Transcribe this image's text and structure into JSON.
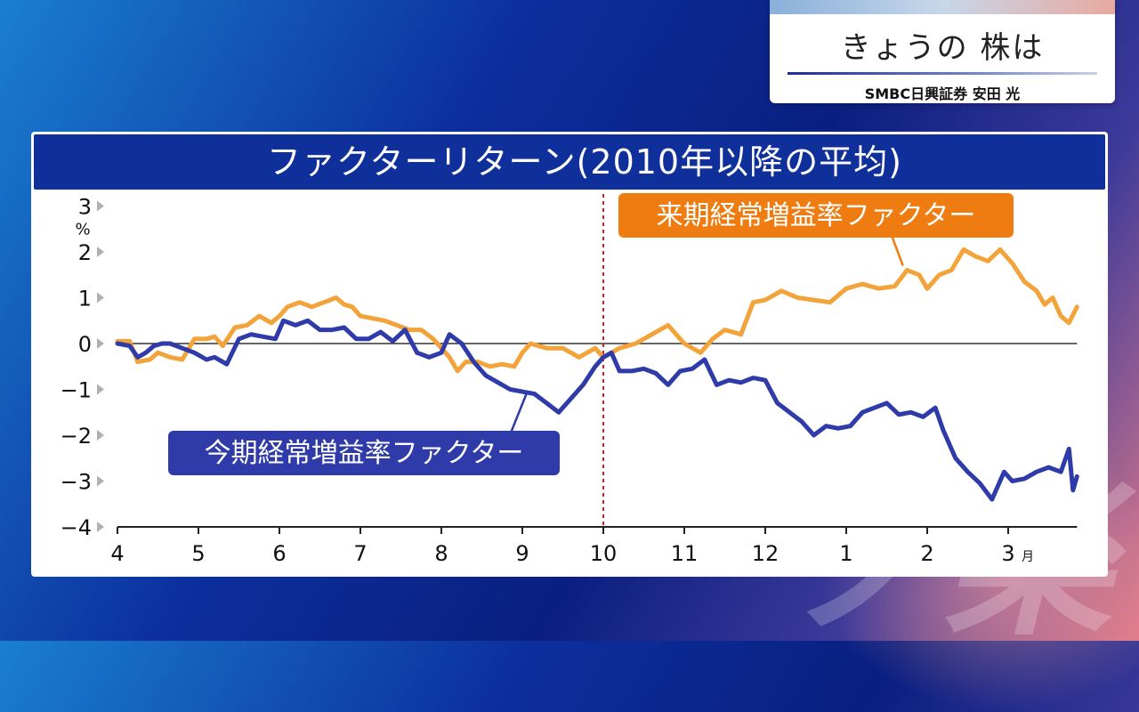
{
  "caption": {
    "title": "きょうの 株は",
    "subtitle": "SMBC日興証券 安田 光"
  },
  "watermark": "ソ楽",
  "chart_data": {
    "type": "line",
    "title": "ファクターリターン(2010年以降の平均)",
    "ylabel": "%",
    "ylim": [
      -4,
      3
    ],
    "yticks": [
      "3",
      "2",
      "1",
      "0",
      "−1",
      "−2",
      "−3",
      "−4"
    ],
    "yticks_values": [
      3,
      2,
      1,
      0,
      -1,
      -2,
      -3,
      -4
    ],
    "x_ticks": [
      "4",
      "5",
      "6",
      "7",
      "8",
      "9",
      "10",
      "11",
      "12",
      "1",
      "2",
      "3"
    ],
    "x_unit": "月",
    "xlim": [
      4,
      15.85
    ],
    "divider_x": 10,
    "grid": false,
    "series": [
      {
        "name": "来期経常増益率ファクター",
        "color": "#f2a33a",
        "label_bg": "#ee7c10",
        "points": [
          [
            4.0,
            0.05
          ],
          [
            4.15,
            0.05
          ],
          [
            4.25,
            -0.4
          ],
          [
            4.4,
            -0.35
          ],
          [
            4.5,
            -0.2
          ],
          [
            4.65,
            -0.3
          ],
          [
            4.8,
            -0.35
          ],
          [
            4.95,
            0.1
          ],
          [
            5.1,
            0.1
          ],
          [
            5.2,
            0.15
          ],
          [
            5.3,
            -0.05
          ],
          [
            5.45,
            0.35
          ],
          [
            5.6,
            0.4
          ],
          [
            5.75,
            0.6
          ],
          [
            5.9,
            0.45
          ],
          [
            6.0,
            0.6
          ],
          [
            6.1,
            0.8
          ],
          [
            6.25,
            0.9
          ],
          [
            6.4,
            0.8
          ],
          [
            6.55,
            0.9
          ],
          [
            6.7,
            1.0
          ],
          [
            6.8,
            0.85
          ],
          [
            6.9,
            0.8
          ],
          [
            7.0,
            0.6
          ],
          [
            7.15,
            0.55
          ],
          [
            7.3,
            0.5
          ],
          [
            7.45,
            0.4
          ],
          [
            7.6,
            0.3
          ],
          [
            7.75,
            0.3
          ],
          [
            7.9,
            0.1
          ],
          [
            8.0,
            -0.1
          ],
          [
            8.1,
            -0.3
          ],
          [
            8.2,
            -0.6
          ],
          [
            8.3,
            -0.4
          ],
          [
            8.45,
            -0.4
          ],
          [
            8.6,
            -0.5
          ],
          [
            8.75,
            -0.45
          ],
          [
            8.9,
            -0.5
          ],
          [
            9.0,
            -0.2
          ],
          [
            9.1,
            0.0
          ],
          [
            9.3,
            -0.1
          ],
          [
            9.5,
            -0.1
          ],
          [
            9.7,
            -0.3
          ],
          [
            9.9,
            -0.1
          ],
          [
            10.0,
            -0.3
          ],
          [
            10.2,
            -0.1
          ],
          [
            10.4,
            0.0
          ],
          [
            10.6,
            0.2
          ],
          [
            10.8,
            0.4
          ],
          [
            11.0,
            0.0
          ],
          [
            11.2,
            -0.2
          ],
          [
            11.35,
            0.1
          ],
          [
            11.5,
            0.3
          ],
          [
            11.7,
            0.2
          ],
          [
            11.85,
            0.9
          ],
          [
            12.0,
            0.95
          ],
          [
            12.2,
            1.15
          ],
          [
            12.4,
            1.0
          ],
          [
            12.6,
            0.95
          ],
          [
            12.8,
            0.9
          ],
          [
            13.0,
            1.2
          ],
          [
            13.2,
            1.3
          ],
          [
            13.4,
            1.2
          ],
          [
            13.6,
            1.25
          ],
          [
            13.75,
            1.6
          ],
          [
            13.9,
            1.5
          ],
          [
            14.0,
            1.2
          ],
          [
            14.15,
            1.5
          ],
          [
            14.3,
            1.6
          ],
          [
            14.45,
            2.05
          ],
          [
            14.6,
            1.9
          ],
          [
            14.75,
            1.8
          ],
          [
            14.9,
            2.05
          ],
          [
            15.05,
            1.75
          ],
          [
            15.2,
            1.35
          ],
          [
            15.35,
            1.15
          ],
          [
            15.45,
            0.85
          ],
          [
            15.55,
            1.0
          ],
          [
            15.65,
            0.6
          ],
          [
            15.75,
            0.45
          ],
          [
            15.85,
            0.8
          ]
        ]
      },
      {
        "name": "今期経常増益率ファクター",
        "color": "#2f3ba8",
        "label_bg": "#2f3ba8",
        "points": [
          [
            4.0,
            0.0
          ],
          [
            4.15,
            -0.05
          ],
          [
            4.25,
            -0.3
          ],
          [
            4.35,
            -0.2
          ],
          [
            4.45,
            -0.05
          ],
          [
            4.55,
            0.0
          ],
          [
            4.65,
            0.0
          ],
          [
            4.8,
            -0.1
          ],
          [
            4.95,
            -0.2
          ],
          [
            5.1,
            -0.35
          ],
          [
            5.2,
            -0.3
          ],
          [
            5.35,
            -0.45
          ],
          [
            5.5,
            0.1
          ],
          [
            5.65,
            0.2
          ],
          [
            5.8,
            0.15
          ],
          [
            5.95,
            0.1
          ],
          [
            6.05,
            0.5
          ],
          [
            6.2,
            0.4
          ],
          [
            6.35,
            0.5
          ],
          [
            6.5,
            0.3
          ],
          [
            6.65,
            0.3
          ],
          [
            6.8,
            0.35
          ],
          [
            6.95,
            0.1
          ],
          [
            7.1,
            0.1
          ],
          [
            7.25,
            0.25
          ],
          [
            7.4,
            0.05
          ],
          [
            7.55,
            0.3
          ],
          [
            7.7,
            -0.2
          ],
          [
            7.85,
            -0.3
          ],
          [
            8.0,
            -0.2
          ],
          [
            8.1,
            0.2
          ],
          [
            8.25,
            0.0
          ],
          [
            8.4,
            -0.4
          ],
          [
            8.55,
            -0.7
          ],
          [
            8.7,
            -0.85
          ],
          [
            8.85,
            -1.0
          ],
          [
            9.0,
            -1.05
          ],
          [
            9.15,
            -1.1
          ],
          [
            9.3,
            -1.3
          ],
          [
            9.45,
            -1.5
          ],
          [
            9.6,
            -1.2
          ],
          [
            9.75,
            -0.9
          ],
          [
            9.9,
            -0.5
          ],
          [
            10.0,
            -0.3
          ],
          [
            10.1,
            -0.2
          ],
          [
            10.2,
            -0.6
          ],
          [
            10.35,
            -0.6
          ],
          [
            10.5,
            -0.55
          ],
          [
            10.65,
            -0.65
          ],
          [
            10.8,
            -0.9
          ],
          [
            10.95,
            -0.6
          ],
          [
            11.1,
            -0.55
          ],
          [
            11.25,
            -0.35
          ],
          [
            11.4,
            -0.9
          ],
          [
            11.55,
            -0.8
          ],
          [
            11.7,
            -0.85
          ],
          [
            11.85,
            -0.75
          ],
          [
            12.0,
            -0.8
          ],
          [
            12.15,
            -1.3
          ],
          [
            12.3,
            -1.5
          ],
          [
            12.45,
            -1.7
          ],
          [
            12.6,
            -2.0
          ],
          [
            12.75,
            -1.8
          ],
          [
            12.9,
            -1.85
          ],
          [
            13.05,
            -1.8
          ],
          [
            13.2,
            -1.5
          ],
          [
            13.35,
            -1.4
          ],
          [
            13.5,
            -1.3
          ],
          [
            13.65,
            -1.55
          ],
          [
            13.8,
            -1.5
          ],
          [
            13.95,
            -1.6
          ],
          [
            14.1,
            -1.4
          ],
          [
            14.2,
            -1.9
          ],
          [
            14.35,
            -2.5
          ],
          [
            14.5,
            -2.8
          ],
          [
            14.65,
            -3.05
          ],
          [
            14.8,
            -3.4
          ],
          [
            14.95,
            -2.8
          ],
          [
            15.05,
            -3.0
          ],
          [
            15.2,
            -2.95
          ],
          [
            15.35,
            -2.8
          ],
          [
            15.5,
            -2.7
          ],
          [
            15.65,
            -2.8
          ],
          [
            15.75,
            -2.3
          ],
          [
            15.8,
            -3.2
          ],
          [
            15.85,
            -2.9
          ]
        ]
      }
    ]
  }
}
